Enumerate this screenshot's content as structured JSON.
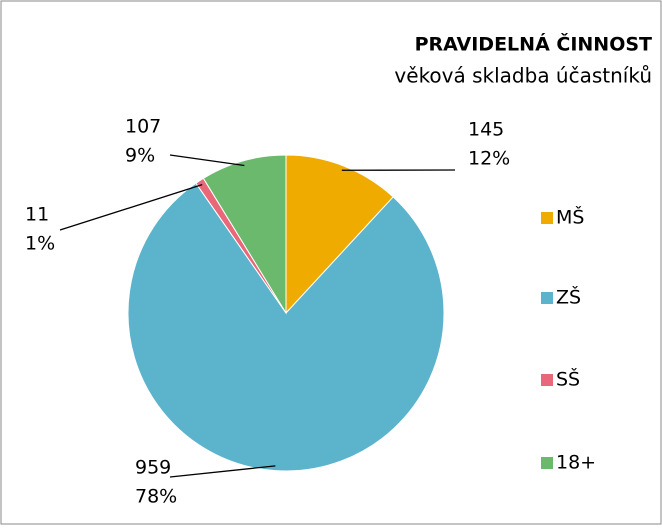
{
  "chart_data": {
    "type": "pie",
    "title": "PRAVIDELNÁ ČINNOST",
    "subtitle": "věková skladba účastníků",
    "categories": [
      "MŠ",
      "ZŠ",
      "SŠ",
      "18+"
    ],
    "values": [
      145,
      959,
      11,
      107
    ],
    "value_labels": [
      "12%",
      "78%",
      "1%",
      "9%"
    ],
    "colors": [
      "#f0ab00",
      "#5cb3cc",
      "#e8687a",
      "#6bb96d"
    ],
    "legend": "right"
  }
}
